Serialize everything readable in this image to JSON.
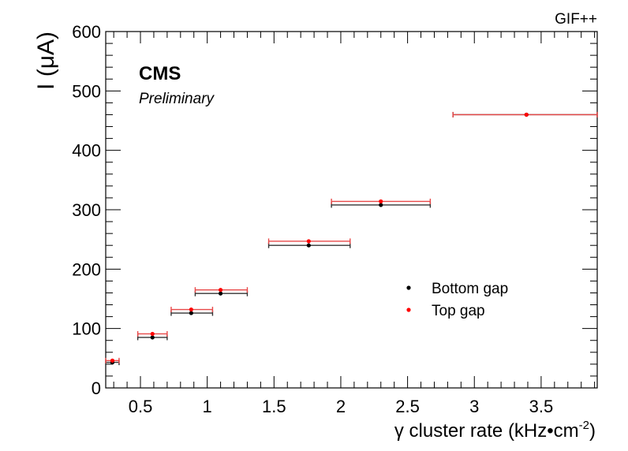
{
  "chart_data": {
    "type": "scatter",
    "experiment": "CMS",
    "status": "Preliminary",
    "facility": "GIF++",
    "xlabel": "γ cluster rate (kHz•cm",
    "xlabel_sup": "-2",
    "xlabel_close": ")",
    "ylabel": "I (μA)",
    "xlim": [
      0.24,
      3.92
    ],
    "ylim": [
      0,
      600
    ],
    "x_ticks": [
      0.5,
      1,
      1.5,
      2,
      2.5,
      3,
      3.5
    ],
    "x_tick_labels": [
      "0.5",
      "1",
      "1.5",
      "2",
      "2.5",
      "3",
      "3.5"
    ],
    "y_ticks": [
      0,
      100,
      200,
      300,
      400,
      500,
      600
    ],
    "y_tick_labels": [
      "0",
      "100",
      "200",
      "300",
      "400",
      "500",
      "600"
    ],
    "legend_position": "center-right",
    "series": [
      {
        "name": "Bottom gap",
        "color": "#000000",
        "points": [
          {
            "x": 0.29,
            "xlo": 0.24,
            "xhi": 0.34,
            "y": 43
          },
          {
            "x": 0.59,
            "xlo": 0.48,
            "xhi": 0.7,
            "y": 85
          },
          {
            "x": 0.88,
            "xlo": 0.73,
            "xhi": 1.04,
            "y": 126
          },
          {
            "x": 1.1,
            "xlo": 0.91,
            "xhi": 1.3,
            "y": 159
          },
          {
            "x": 1.76,
            "xlo": 1.46,
            "xhi": 2.07,
            "y": 240
          },
          {
            "x": 2.3,
            "xlo": 1.93,
            "xhi": 2.67,
            "y": 308
          },
          {
            "x": 3.39,
            "xlo": 2.84,
            "xhi": 3.92,
            "y": 460
          }
        ]
      },
      {
        "name": "Top gap",
        "color": "#ff0000",
        "points": [
          {
            "x": 0.29,
            "xlo": 0.24,
            "xhi": 0.34,
            "y": 46
          },
          {
            "x": 0.59,
            "xlo": 0.48,
            "xhi": 0.7,
            "y": 91
          },
          {
            "x": 0.88,
            "xlo": 0.73,
            "xhi": 1.04,
            "y": 132
          },
          {
            "x": 1.1,
            "xlo": 0.91,
            "xhi": 1.3,
            "y": 165
          },
          {
            "x": 1.76,
            "xlo": 1.46,
            "xhi": 2.07,
            "y": 247
          },
          {
            "x": 2.3,
            "xlo": 1.93,
            "xhi": 2.67,
            "y": 314
          },
          {
            "x": 3.39,
            "xlo": 2.84,
            "xhi": 3.92,
            "y": 460
          }
        ]
      }
    ]
  }
}
